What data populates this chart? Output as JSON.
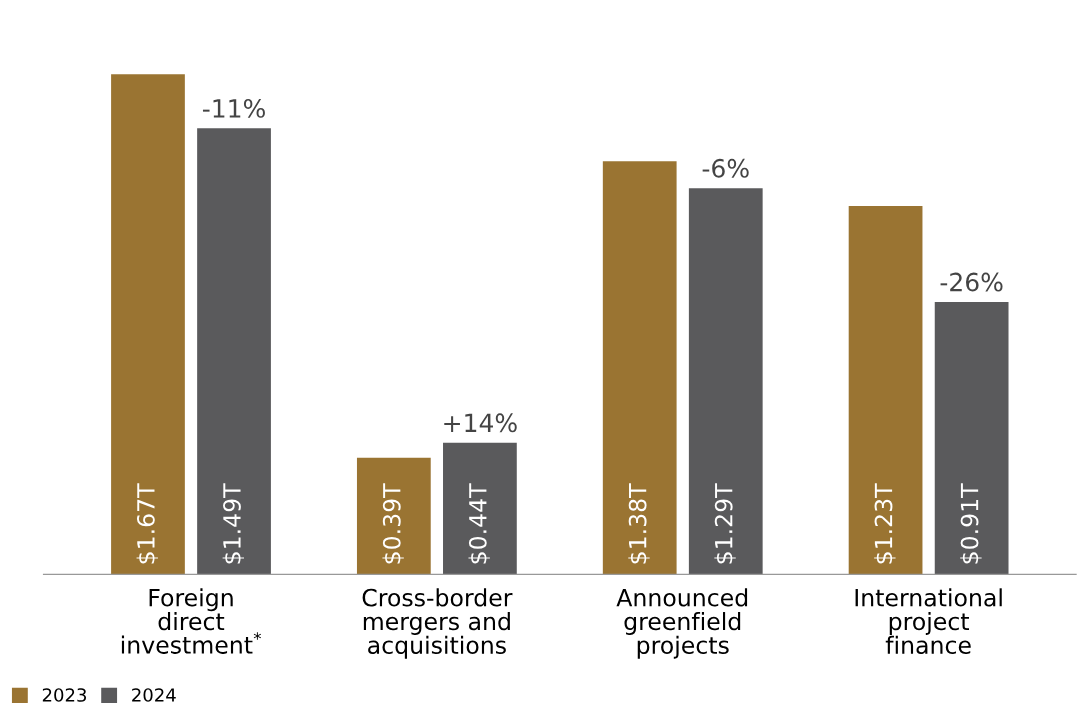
{
  "chart_data": {
    "type": "bar",
    "categories": [
      "Foreign\ndirect\ninvestment$^{*}$",
      "Cross-border\nmergers and\nacquisitions",
      "Announced\ngreenfield\nprojects",
      "International\nproject\nfinance"
    ],
    "series": [
      {
        "name": "2023",
        "color": "#9a7432",
        "values": [
          1.67,
          0.39,
          1.38,
          1.23
        ],
        "value_labels": [
          "$1.67T",
          "$0.39T",
          "$1.38T",
          "$1.23T"
        ]
      },
      {
        "name": "2024",
        "color": "#5a5a5c",
        "values": [
          1.49,
          0.44,
          1.29,
          0.91
        ],
        "value_labels": [
          "$1.49T",
          "$0.44T",
          "$1.29T",
          "$0.91T"
        ]
      }
    ],
    "annotations": [
      "-11%",
      "+14%",
      "-6%",
      "-26%"
    ],
    "legend": "bottom left",
    "grid": false
  }
}
